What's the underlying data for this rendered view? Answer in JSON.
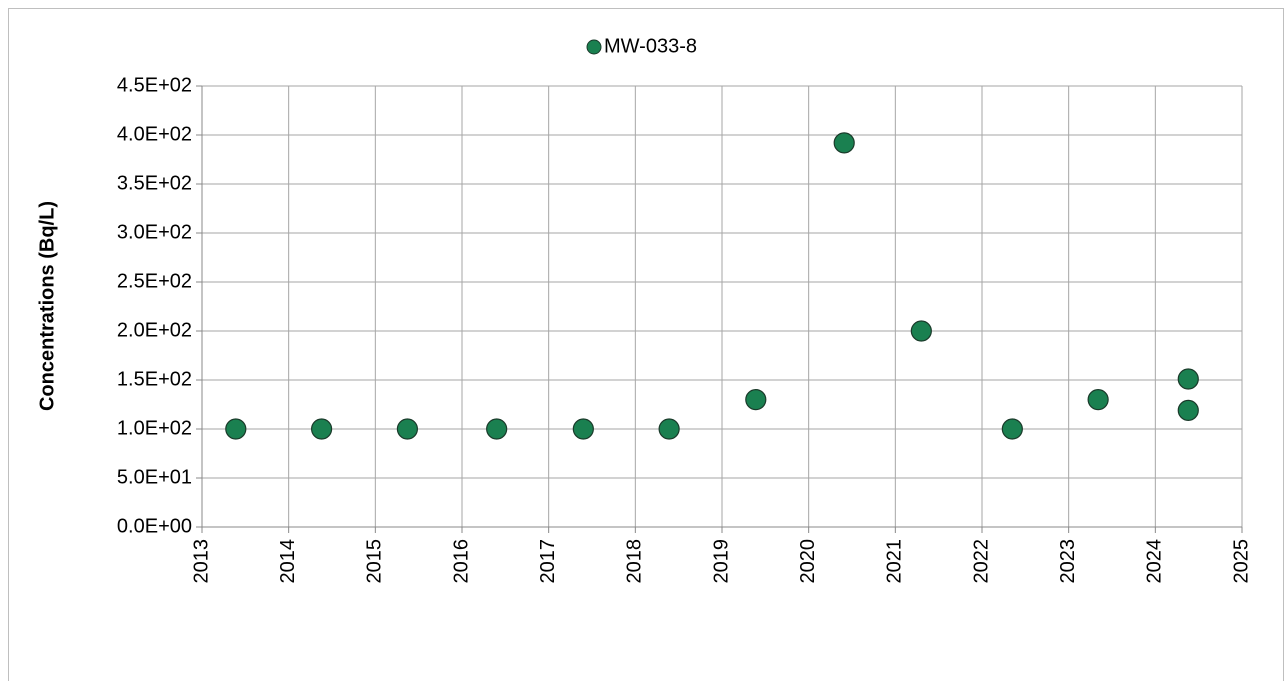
{
  "chart_data": {
    "type": "scatter",
    "y_label": "Concentrations (Bq/L)",
    "series": [
      {
        "name": "MW-033-8",
        "color": "#1a8050",
        "x": [
          2013.39,
          2014.38,
          2015.37,
          2016.4,
          2017.4,
          2018.39,
          2019.39,
          2020.41,
          2021.3,
          2022.35,
          2023.34,
          2024.38,
          2024.38
        ],
        "values": [
          100,
          100,
          100,
          100,
          100,
          100,
          130,
          392,
          200,
          100,
          130,
          151,
          119
        ]
      }
    ],
    "xlim": [
      2013,
      2025
    ],
    "xticks": [
      2013,
      2014,
      2015,
      2016,
      2017,
      2018,
      2019,
      2020,
      2021,
      2022,
      2023,
      2024,
      2025
    ],
    "ylim": [
      0,
      450
    ],
    "yticks": [
      {
        "value": 0,
        "label": "0.0E+00"
      },
      {
        "value": 50,
        "label": "5.0E+01"
      },
      {
        "value": 100,
        "label": "1.0E+02"
      },
      {
        "value": 150,
        "label": "1.5E+02"
      },
      {
        "value": 200,
        "label": "2.0E+02"
      },
      {
        "value": 250,
        "label": "2.5E+02"
      },
      {
        "value": 300,
        "label": "3.0E+02"
      },
      {
        "value": 350,
        "label": "3.5E+02"
      },
      {
        "value": 400,
        "label": "4.0E+02"
      },
      {
        "value": 450,
        "label": "4.5E+02"
      }
    ],
    "grid": true,
    "legend": "top"
  }
}
